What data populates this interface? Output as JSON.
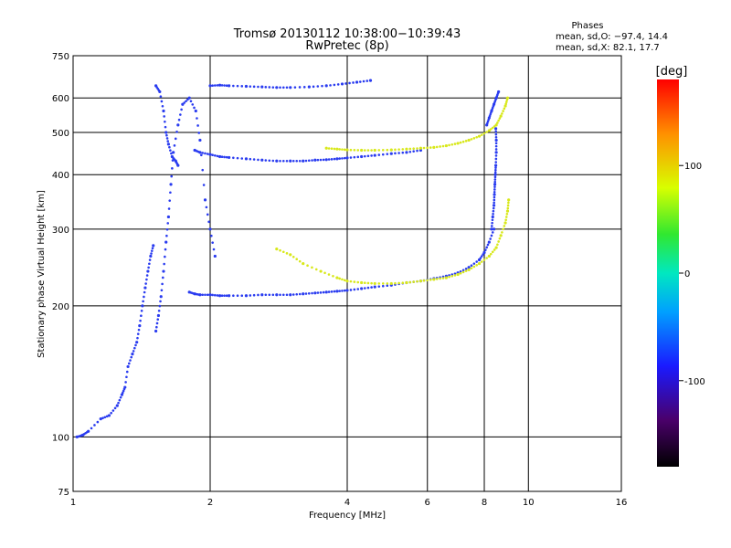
{
  "chart_data": {
    "type": "scatter",
    "title": "Tromsø 20130112 10:38:00−10:39:43",
    "subtitle": "RwPretec (8p)",
    "xlabel": "Frequency [MHz]",
    "ylabel": "Stationary phase Virtual Height [km]",
    "x_scale": "log",
    "y_scale": "log",
    "xlim": [
      1,
      16
    ],
    "ylim": [
      75,
      750
    ],
    "x_ticks": [
      1,
      2,
      4,
      6,
      8,
      10,
      16
    ],
    "y_ticks": [
      75,
      100,
      200,
      300,
      400,
      500,
      600,
      750
    ],
    "grid": true,
    "phase_info": {
      "title": "Phases",
      "line_o": "mean, sd,O: −97.4, 14.4",
      "line_x": "mean, sd,X:  82.1, 17.7"
    },
    "colorbar": {
      "label": "[deg]",
      "ticks": [
        100,
        0,
        -100
      ],
      "range": [
        -180,
        180
      ]
    },
    "series": [
      {
        "name": "",
        "color": "#2a3cf0",
        "mean_phase_deg": -97.4,
        "traces": [
          {
            "x": [
              1.02,
              1.05,
              1.08,
              1.15,
              1.2,
              1.25,
              1.28,
              1.3,
              1.32,
              1.35,
              1.38,
              1.4,
              1.42,
              1.44,
              1.46,
              1.48,
              1.5
            ],
            "y": [
              100,
              101,
              103,
              110,
              112,
              118,
              125,
              130,
              145,
              155,
              165,
              180,
              200,
              220,
              240,
              260,
              275
            ]
          },
          {
            "x": [
              1.52,
              1.54,
              1.56,
              1.58,
              1.6,
              1.62,
              1.64,
              1.66,
              1.7,
              1.74,
              1.8,
              1.86,
              1.9,
              1.95,
              2.0,
              2.05
            ],
            "y": [
              175,
              190,
              210,
              240,
              280,
              320,
              380,
              450,
              520,
              580,
              600,
              560,
              480,
              350,
              300,
              260
            ]
          },
          {
            "x": [
              1.52,
              1.55,
              1.58,
              1.6,
              1.62,
              1.65,
              1.68,
              1.7
            ],
            "y": [
              640,
              620,
              560,
              500,
              470,
              440,
              430,
              420
            ]
          },
          {
            "x": [
              1.8,
              1.85,
              1.9,
              2.0,
              2.1,
              2.2,
              2.4,
              2.6,
              2.8,
              3.0,
              3.2,
              3.4,
              3.6,
              3.8,
              4.0,
              4.3,
              4.6,
              5.0,
              5.4,
              5.8,
              6.2,
              6.6,
              7.0,
              7.4,
              7.8,
              8.0,
              8.2,
              8.4
            ],
            "y": [
              215,
              213,
              212,
              212,
              211,
              211,
              211,
              212,
              212,
              212,
              213,
              214,
              215,
              216,
              217,
              219,
              221,
              223,
              226,
              228,
              231,
              234,
              238,
              245,
              255,
              265,
              280,
              300
            ]
          },
          {
            "x": [
              8.3,
              8.35,
              8.4,
              8.42,
              8.44,
              8.46,
              8.48,
              8.5,
              8.5,
              8.48
            ],
            "y": [
              300,
              320,
              340,
              360,
              380,
              400,
              420,
              450,
              480,
              510
            ]
          },
          {
            "x": [
              1.85,
              1.9,
              2.0,
              2.1,
              2.2,
              2.4,
              2.6,
              2.8,
              3.0,
              3.2,
              3.4,
              3.6,
              3.8,
              4.0,
              4.3,
              4.6,
              5.0,
              5.4,
              5.8
            ],
            "y": [
              455,
              450,
              445,
              440,
              438,
              435,
              432,
              430,
              430,
              430,
              432,
              433,
              435,
              437,
              440,
              443,
              447,
              450,
              455
            ]
          },
          {
            "x": [
              2.0,
              2.1,
              2.2,
              2.4,
              2.6,
              2.8,
              3.0,
              3.3,
              3.6,
              3.9,
              4.2,
              4.5
            ],
            "y": [
              640,
              642,
              640,
              638,
              636,
              634,
              634,
              636,
              640,
              646,
              652,
              658
            ]
          },
          {
            "x": [
              8.1,
              8.2,
              8.3,
              8.4,
              8.5,
              8.6
            ],
            "y": [
              520,
              540,
              560,
              580,
              600,
              620
            ]
          }
        ]
      },
      {
        "name": "",
        "color": "#d8e81a",
        "mean_phase_deg": 82.1,
        "traces": [
          {
            "x": [
              2.8,
              3.0,
              3.2,
              3.5,
              3.8,
              4.0,
              4.3,
              4.6,
              5.0,
              5.4,
              5.8,
              6.2,
              6.6,
              7.0,
              7.4,
              7.8,
              8.2,
              8.5,
              8.7,
              8.9,
              9.0,
              9.05
            ],
            "y": [
              270,
              262,
              250,
              240,
              232,
              228,
              226,
              225,
              225,
              226,
              228,
              230,
              232,
              236,
              242,
              250,
              260,
              272,
              290,
              310,
              330,
              350
            ]
          },
          {
            "x": [
              3.6,
              3.8,
              4.0,
              4.3,
              4.6,
              5.0,
              5.4,
              5.8,
              6.2,
              6.6,
              7.0,
              7.4,
              7.8,
              8.2,
              8.5,
              8.7,
              8.9,
              9.0
            ],
            "y": [
              460,
              458,
              456,
              455,
              455,
              456,
              458,
              460,
              462,
              466,
              472,
              480,
              490,
              505,
              520,
              545,
              575,
              600
            ]
          }
        ]
      }
    ]
  }
}
